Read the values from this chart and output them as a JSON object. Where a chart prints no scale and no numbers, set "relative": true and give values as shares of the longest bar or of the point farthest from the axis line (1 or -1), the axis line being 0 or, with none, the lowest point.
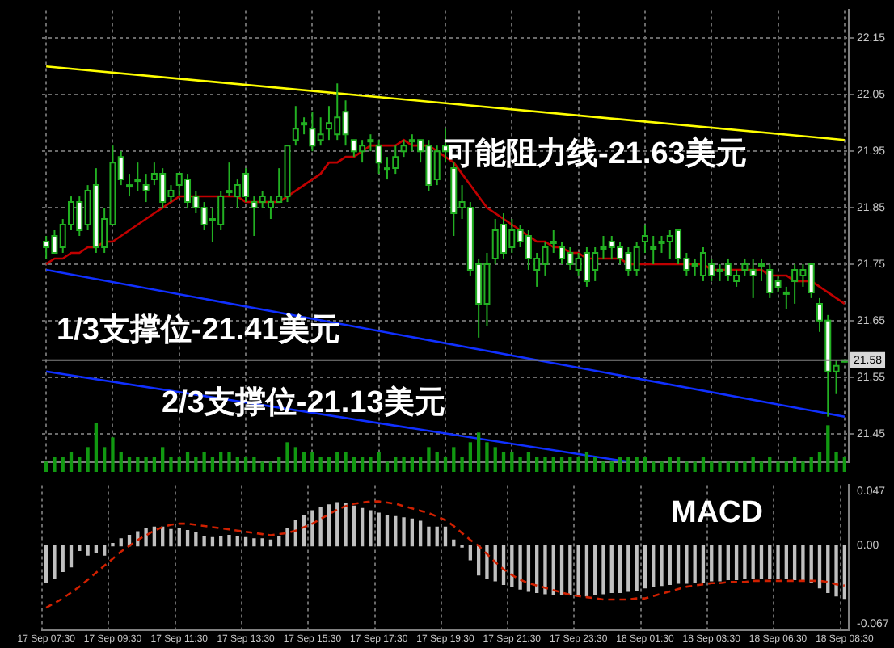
{
  "chart_data": [
    {
      "type": "candlestick",
      "color": "#22b022",
      "colors": [
        "#ffffff",
        "#ffffff",
        "#000000",
        "#000000",
        "#ffffff",
        "#000000",
        "#ffffff",
        "#000000",
        "#000000",
        "#ffffff",
        "#000000",
        "#000000",
        "#ffffff",
        "#000000",
        "#ffffff",
        "#000000",
        "#000000",
        "#ffffff",
        "#ffffff",
        "#ffffff",
        "#000000",
        "#000000",
        "#000000",
        "#000000",
        "#ffffff",
        "#ffffff",
        "#000000",
        "#000000",
        "#000000",
        "#000000",
        "#000000",
        "#000000",
        "#ffffff",
        "#000000",
        "#000000",
        "#000000",
        "#ffffff",
        "#ffffff",
        "#000000",
        "#000000",
        "#ffffff",
        "#000000",
        "#000000",
        "#000000",
        "#000000",
        "#ffffff",
        "#ffffff",
        "#000000",
        "#ffffff",
        "#ffffff",
        "#000000",
        "#ffffff",
        "#ffffff",
        "#000000",
        "#000000",
        "#ffffff",
        "#000000",
        "#ffffff",
        "#ffffff",
        "#000000",
        "#000000",
        "#000000",
        "#ffffff",
        "#ffffff",
        "#000000",
        "#ffffff",
        "#000000",
        "#000000",
        "#ffffff",
        "#ffffff",
        "#ffffff",
        "#000000",
        "#000000",
        "#000000",
        "#000000",
        "#000000",
        "#ffffff",
        "#ffffff",
        "#000000",
        "#000000",
        "#ffffff",
        "#000000",
        "#ffffff",
        "#000000",
        "#000000",
        "#ffffff",
        "#000000",
        "#ffffff",
        "#ffffff",
        "#000000",
        "#000000",
        "#000000",
        "#ffffff",
        "#ffffff",
        "#ffffff",
        "#000000",
        "#000000"
      ],
      "categories": [
        null,
        null,
        null,
        null,
        null,
        null,
        null,
        null,
        null,
        null,
        null,
        null,
        null,
        null,
        null,
        null,
        null,
        null,
        null,
        null,
        null,
        null,
        null,
        null,
        null,
        null,
        null,
        null,
        null,
        null,
        null,
        null,
        null,
        null,
        null,
        null,
        null,
        null,
        null,
        null,
        null,
        null,
        null,
        null,
        null,
        null,
        null,
        null,
        null,
        null,
        null,
        null,
        null,
        null,
        null,
        null,
        null,
        null,
        null,
        null,
        null,
        null,
        null,
        null,
        null,
        null,
        null,
        null,
        null,
        null,
        null,
        null,
        null,
        null,
        null,
        null,
        null,
        null,
        null,
        null,
        null,
        null,
        null,
        null,
        null,
        null,
        null,
        null,
        null,
        null,
        null,
        null,
        null,
        null,
        null,
        null,
        null
      ],
      "ohlc": [
        [
          21.79,
          21.8,
          21.76,
          21.78
        ],
        [
          21.8,
          21.81,
          21.77,
          21.77
        ],
        [
          21.78,
          21.83,
          21.77,
          21.82
        ],
        [
          21.82,
          21.87,
          21.81,
          21.86
        ],
        [
          21.86,
          21.87,
          21.8,
          21.81
        ],
        [
          21.82,
          21.89,
          21.81,
          21.88
        ],
        [
          21.89,
          21.92,
          21.77,
          21.78
        ],
        [
          21.78,
          21.85,
          21.77,
          21.83
        ],
        [
          21.82,
          21.96,
          21.82,
          21.93
        ],
        [
          21.94,
          21.95,
          21.89,
          21.9
        ],
        [
          21.89,
          21.91,
          21.87,
          21.89
        ],
        [
          21.9,
          21.93,
          21.88,
          21.9
        ],
        [
          21.89,
          21.91,
          21.86,
          21.88
        ],
        [
          21.9,
          21.93,
          21.89,
          21.91
        ],
        [
          21.91,
          21.92,
          21.85,
          21.86
        ],
        [
          21.87,
          21.89,
          21.86,
          21.88
        ],
        [
          21.89,
          21.91,
          21.87,
          21.91
        ],
        [
          21.9,
          21.91,
          21.85,
          21.86
        ],
        [
          21.87,
          21.88,
          21.84,
          21.85
        ],
        [
          21.85,
          21.86,
          21.81,
          21.82
        ],
        [
          21.83,
          21.85,
          21.79,
          21.83
        ],
        [
          21.82,
          21.88,
          21.81,
          21.87
        ],
        [
          21.88,
          21.93,
          21.87,
          21.88
        ],
        [
          21.87,
          21.9,
          21.85,
          21.89
        ],
        [
          21.91,
          21.92,
          21.86,
          21.87
        ],
        [
          21.86,
          21.87,
          21.8,
          21.85
        ],
        [
          21.86,
          21.88,
          21.85,
          21.87
        ],
        [
          21.85,
          21.87,
          21.83,
          21.86
        ],
        [
          21.86,
          21.92,
          21.86,
          21.87
        ],
        [
          21.87,
          21.96,
          21.86,
          21.96
        ],
        [
          21.97,
          22.03,
          21.96,
          21.99
        ],
        [
          22.0,
          22.01,
          21.98,
          22.0
        ],
        [
          21.99,
          22.02,
          21.95,
          21.96
        ],
        [
          21.97,
          22.01,
          21.96,
          21.98
        ],
        [
          21.99,
          22.03,
          21.97,
          22.0
        ],
        [
          21.98,
          22.07,
          21.97,
          22.01
        ],
        [
          22.02,
          22.04,
          21.96,
          21.98
        ],
        [
          21.97,
          21.97,
          21.94,
          21.95
        ],
        [
          21.95,
          21.97,
          21.93,
          21.96
        ],
        [
          21.97,
          21.98,
          21.95,
          21.97
        ],
        [
          21.96,
          21.97,
          21.91,
          21.93
        ],
        [
          21.92,
          21.94,
          21.9,
          21.92
        ],
        [
          21.92,
          21.96,
          21.91,
          21.94
        ],
        [
          21.95,
          21.97,
          21.94,
          21.96
        ],
        [
          21.97,
          21.98,
          21.95,
          21.97
        ],
        [
          21.97,
          21.97,
          21.93,
          21.95
        ],
        [
          21.96,
          21.97,
          21.88,
          21.89
        ],
        [
          21.9,
          21.96,
          21.89,
          21.95
        ],
        [
          21.96,
          21.99,
          21.93,
          21.95
        ],
        [
          21.92,
          21.93,
          21.8,
          21.84
        ],
        [
          21.85,
          21.89,
          21.83,
          21.86
        ],
        [
          21.85,
          21.86,
          21.73,
          21.74
        ],
        [
          21.75,
          21.76,
          21.62,
          21.68
        ],
        [
          21.68,
          21.77,
          21.64,
          21.75
        ],
        [
          21.76,
          21.83,
          21.75,
          21.81
        ],
        [
          21.82,
          21.84,
          21.76,
          21.77
        ],
        [
          21.78,
          21.83,
          21.77,
          21.81
        ],
        [
          21.81,
          21.82,
          21.78,
          21.79
        ],
        [
          21.8,
          21.81,
          21.74,
          21.76
        ],
        [
          21.74,
          21.77,
          21.71,
          21.76
        ],
        [
          21.75,
          21.79,
          21.73,
          21.78
        ],
        [
          21.79,
          21.81,
          21.77,
          21.79
        ],
        [
          21.78,
          21.79,
          21.75,
          21.76
        ],
        [
          21.77,
          21.78,
          21.74,
          21.75
        ],
        [
          21.74,
          21.77,
          21.73,
          21.76
        ],
        [
          21.77,
          21.78,
          21.71,
          21.72
        ],
        [
          21.74,
          21.78,
          21.72,
          21.77
        ],
        [
          21.78,
          21.8,
          21.76,
          21.78
        ],
        [
          21.79,
          21.8,
          21.76,
          21.78
        ],
        [
          21.78,
          21.79,
          21.75,
          21.76
        ],
        [
          21.77,
          21.78,
          21.73,
          21.74
        ],
        [
          21.74,
          21.79,
          21.73,
          21.78
        ],
        [
          21.79,
          21.82,
          21.77,
          21.8
        ],
        [
          21.78,
          21.8,
          21.75,
          21.78
        ],
        [
          21.79,
          21.8,
          21.77,
          21.79
        ],
        [
          21.79,
          21.81,
          21.76,
          21.8
        ],
        [
          21.81,
          21.81,
          21.75,
          21.76
        ],
        [
          21.76,
          21.77,
          21.73,
          21.74
        ],
        [
          21.75,
          21.76,
          21.73,
          21.75
        ],
        [
          21.73,
          21.78,
          21.72,
          21.77
        ],
        [
          21.75,
          21.76,
          21.72,
          21.73
        ],
        [
          21.74,
          21.75,
          21.72,
          21.74
        ],
        [
          21.75,
          21.76,
          21.72,
          21.73
        ],
        [
          21.72,
          21.74,
          21.71,
          21.73
        ],
        [
          21.74,
          21.76,
          21.73,
          21.75
        ],
        [
          21.74,
          21.76,
          21.69,
          21.73
        ],
        [
          21.75,
          21.76,
          21.72,
          21.75
        ],
        [
          21.74,
          21.75,
          21.69,
          21.7
        ],
        [
          21.72,
          21.73,
          21.7,
          21.71
        ],
        [
          21.7,
          21.71,
          21.67,
          21.7
        ],
        [
          21.72,
          21.75,
          21.68,
          21.74
        ],
        [
          21.73,
          21.75,
          21.71,
          21.74
        ],
        [
          21.75,
          21.75,
          21.69,
          21.7
        ],
        [
          21.68,
          21.69,
          21.63,
          21.65
        ],
        [
          21.65,
          21.66,
          21.48,
          21.56
        ],
        [
          21.56,
          21.58,
          21.52,
          21.57
        ],
        [
          21.58,
          21.58,
          21.58,
          21.58
        ]
      ],
      "series": [
        {
          "type": "line",
          "color": "#c00000",
          "values": [
            21.75,
            21.76,
            21.76,
            21.77,
            21.77,
            21.78,
            21.78,
            21.79,
            21.79,
            21.8,
            21.81,
            21.82,
            21.83,
            21.84,
            21.85,
            21.86,
            21.87,
            21.87,
            21.87,
            21.87,
            21.87,
            21.87,
            21.87,
            21.87,
            21.86,
            21.86,
            21.86,
            21.86,
            21.86,
            21.87,
            21.88,
            21.89,
            21.9,
            21.91,
            21.93,
            21.93,
            21.94,
            21.94,
            21.95,
            21.96,
            21.96,
            21.96,
            21.96,
            21.97,
            21.96,
            21.96,
            21.96,
            21.95,
            21.94,
            21.93,
            21.91,
            21.89,
            21.87,
            21.85,
            21.84,
            21.83,
            21.82,
            21.81,
            21.8,
            21.79,
            21.79,
            21.78,
            21.78,
            21.77,
            21.77,
            21.76,
            21.76,
            21.76,
            21.76,
            21.76,
            21.75,
            21.75,
            21.75,
            21.75,
            21.75,
            21.75,
            21.75,
            21.75,
            21.75,
            21.75,
            21.74,
            21.74,
            21.74,
            21.74,
            21.74,
            21.74,
            21.74,
            21.73,
            21.73,
            21.73,
            21.72,
            21.72,
            21.72,
            21.71,
            21.7,
            21.69,
            21.68
          ]
        },
        {
          "type": "line",
          "color": "#ffff00",
          "values": [
            22.1,
            null,
            null,
            null,
            null,
            null,
            null,
            null,
            null,
            null,
            null,
            null,
            null,
            null,
            null,
            null,
            null,
            null,
            null,
            null,
            null,
            null,
            null,
            null,
            null,
            null,
            null,
            null,
            null,
            null,
            null,
            null,
            null,
            null,
            null,
            null,
            null,
            null,
            null,
            null,
            null,
            null,
            null,
            null,
            null,
            null,
            null,
            null,
            null,
            null,
            null,
            null,
            null,
            null,
            null,
            null,
            null,
            null,
            null,
            null,
            null,
            null,
            null,
            null,
            null,
            null,
            null,
            null,
            null,
            null,
            null,
            null,
            null,
            null,
            null,
            null,
            null,
            null,
            null,
            null,
            null,
            null,
            null,
            null,
            null,
            null,
            null,
            null,
            null,
            null,
            null,
            null,
            null,
            null,
            null,
            null,
            21.97
          ]
        },
        {
          "type": "line",
          "color": "#1030ff",
          "values": [
            21.74,
            null,
            null,
            null,
            null,
            null,
            null,
            null,
            null,
            null,
            null,
            null,
            null,
            null,
            null,
            null,
            null,
            null,
            null,
            null,
            null,
            null,
            null,
            null,
            null,
            null,
            null,
            null,
            null,
            null,
            null,
            null,
            null,
            null,
            null,
            null,
            null,
            null,
            null,
            null,
            null,
            null,
            null,
            null,
            null,
            null,
            null,
            null,
            null,
            null,
            null,
            null,
            null,
            null,
            null,
            null,
            null,
            null,
            null,
            null,
            null,
            null,
            null,
            null,
            null,
            null,
            null,
            null,
            null,
            null,
            null,
            null,
            null,
            null,
            null,
            null,
            null,
            null,
            null,
            null,
            null,
            null,
            null,
            null,
            null,
            null,
            null,
            null,
            null,
            null,
            null,
            null,
            null,
            null,
            null,
            null,
            21.48
          ]
        },
        {
          "type": "line",
          "color": "#1030ff",
          "values": [
            21.56,
            null,
            null,
            null,
            null,
            null,
            null,
            null,
            null,
            null,
            null,
            null,
            null,
            null,
            null,
            null,
            null,
            null,
            null,
            null,
            null,
            null,
            null,
            null,
            null,
            null,
            null,
            null,
            null,
            null,
            null,
            null,
            null,
            null,
            null,
            null,
            null,
            null,
            null,
            null,
            null,
            null,
            null,
            null,
            null,
            null,
            null,
            null,
            null,
            null,
            null,
            null,
            null,
            null,
            null,
            null,
            null,
            null,
            null,
            null,
            null,
            null,
            null,
            null,
            null,
            null,
            null,
            null,
            null,
            null,
            21.4,
            null,
            null,
            null,
            null,
            null,
            null,
            null,
            null,
            null,
            null,
            null,
            null,
            null,
            null,
            null,
            null,
            null,
            null,
            null,
            null,
            null,
            null,
            null,
            null,
            null,
            null
          ]
        }
      ],
      "ylim": [
        21.4,
        22.2
      ],
      "yticks": [
        21.45,
        21.55,
        21.65,
        21.75,
        21.85,
        21.95,
        22.05,
        22.15
      ],
      "ref_lines": [
        {
          "axis": "y",
          "value": 21.58,
          "label": "21.58",
          "color": "#808080"
        }
      ],
      "annotations": [
        "可能阻力线-21.63美元",
        "1/3支撑位-21.41美元",
        "2/3支撑位-21.13美元"
      ],
      "grid": true,
      "tick_labels": "y"
    },
    {
      "type": "bar",
      "relative": true,
      "color": "#119911",
      "categories": [
        null,
        null,
        null,
        null,
        null,
        null,
        null,
        null,
        null,
        null,
        null,
        null,
        null,
        null,
        null,
        null,
        null,
        null,
        null,
        null,
        null,
        null,
        null,
        null,
        null,
        null,
        null,
        null,
        null,
        null,
        null,
        null,
        null,
        null,
        null,
        null,
        null,
        null,
        null,
        null,
        null,
        null,
        null,
        null,
        null,
        null,
        null,
        null,
        null,
        null,
        null,
        null,
        null,
        null,
        null,
        null,
        null,
        null,
        null,
        null,
        null,
        null,
        null,
        null,
        null,
        null,
        null,
        null,
        null,
        null,
        null,
        null,
        null,
        null,
        null,
        null,
        null,
        null,
        null,
        null,
        null,
        null,
        null,
        null,
        null,
        null,
        null,
        null,
        null,
        null,
        null,
        null,
        null,
        null,
        null,
        null,
        null
      ],
      "values": [
        0.2,
        0.3,
        0.3,
        0.4,
        0.3,
        0.5,
        1,
        0.5,
        0.7,
        0.4,
        0.3,
        0.3,
        0.3,
        0.3,
        0.5,
        0.3,
        0.3,
        0.4,
        0.3,
        0.4,
        0.3,
        0.4,
        0.4,
        0.3,
        0.3,
        0.3,
        0.2,
        0.2,
        0.3,
        0.6,
        0.5,
        0.4,
        0.4,
        0.3,
        0.3,
        0.4,
        0.4,
        0.3,
        0.3,
        0.3,
        0.4,
        0.2,
        0.3,
        0.3,
        0.3,
        0.3,
        0.5,
        0.4,
        0.3,
        0.5,
        0.3,
        0.6,
        0.8,
        0.6,
        0.5,
        0.4,
        0.4,
        0.3,
        0.4,
        0.3,
        0.3,
        0.3,
        0.3,
        0.3,
        0.3,
        0.4,
        0.3,
        0.2,
        0.2,
        0.3,
        0.3,
        0.3,
        0.3,
        0.2,
        0.2,
        0.3,
        0.3,
        0.2,
        0.2,
        0.3,
        0.2,
        0.2,
        0.2,
        0.2,
        0.2,
        0.3,
        0.2,
        0.3,
        0.2,
        0.2,
        0.3,
        0.2,
        0.3,
        0.4,
        0.95,
        0.4,
        0.3
      ],
      "tick_labels": false
    },
    {
      "type": "bar",
      "categories": [
        "17 Sep 07:30",
        null,
        null,
        null,
        null,
        null,
        null,
        null,
        "17 Sep 09:30",
        null,
        null,
        null,
        null,
        null,
        null,
        null,
        "17 Sep 11:30",
        null,
        null,
        null,
        null,
        null,
        null,
        null,
        "17 Sep 13:30",
        null,
        null,
        null,
        null,
        null,
        null,
        null,
        "17 Sep 15:30",
        null,
        null,
        null,
        null,
        null,
        null,
        null,
        "17 Sep 17:30",
        null,
        null,
        null,
        null,
        null,
        null,
        null,
        "17 Sep 19:30",
        null,
        null,
        null,
        null,
        null,
        null,
        null,
        "17 Sep 21:30",
        null,
        null,
        null,
        null,
        null,
        null,
        null,
        "17 Sep 23:30",
        null,
        null,
        null,
        null,
        null,
        null,
        null,
        "18 Sep 01:30",
        null,
        null,
        null,
        null,
        null,
        null,
        null,
        "18 Sep 03:30",
        null,
        null,
        null,
        null,
        null,
        null,
        null,
        "18 Sep 06:30",
        null,
        null,
        null,
        null,
        null,
        null,
        null,
        "18 Sep 08:30"
      ],
      "series": [
        {
          "type": "bar",
          "color": "#c0c0c0",
          "values": [
            -0.031,
            -0.028,
            -0.022,
            -0.018,
            -0.004,
            -0.008,
            -0.006,
            -0.008,
            0.002,
            0.006,
            0.009,
            0.012,
            0.015,
            0.016,
            0.016,
            0.014,
            0.015,
            0.013,
            0.011,
            0.008,
            0.007,
            0.008,
            0.009,
            0.008,
            0.007,
            0.006,
            0.006,
            0.005,
            0.008,
            0.015,
            0.022,
            0.026,
            0.03,
            0.033,
            0.035,
            0.037,
            0.036,
            0.034,
            0.032,
            0.03,
            0.028,
            0.026,
            0.025,
            0.024,
            0.023,
            0.021,
            0.016,
            0.016,
            0.016,
            0.005,
            -0.001,
            -0.012,
            -0.025,
            -0.028,
            -0.03,
            -0.033,
            -0.035,
            -0.037,
            -0.039,
            -0.04,
            -0.041,
            -0.042,
            -0.042,
            -0.042,
            -0.043,
            -0.043,
            -0.042,
            -0.041,
            -0.04,
            -0.04,
            -0.039,
            -0.038,
            -0.036,
            -0.035,
            -0.034,
            -0.033,
            -0.032,
            -0.032,
            -0.031,
            -0.031,
            -0.03,
            -0.03,
            -0.029,
            -0.029,
            -0.028,
            -0.028,
            -0.028,
            -0.028,
            -0.028,
            -0.028,
            -0.029,
            -0.029,
            -0.031,
            -0.036,
            -0.04,
            -0.043,
            -0.045
          ]
        },
        {
          "type": "line",
          "color": "#d02000",
          "line_style": "dashed",
          "values": [
            -0.053,
            -0.049,
            -0.045,
            -0.04,
            -0.035,
            -0.029,
            -0.023,
            -0.017,
            -0.011,
            -0.005,
            0.0,
            0.005,
            0.009,
            0.013,
            0.016,
            0.018,
            0.019,
            0.019,
            0.018,
            0.017,
            0.016,
            0.015,
            0.014,
            0.013,
            0.012,
            0.011,
            0.01,
            0.009,
            0.01,
            0.011,
            0.013,
            0.016,
            0.019,
            0.023,
            0.027,
            0.031,
            0.034,
            0.036,
            0.037,
            0.038,
            0.038,
            0.037,
            0.036,
            0.034,
            0.032,
            0.03,
            0.028,
            0.025,
            0.022,
            0.017,
            0.011,
            0.005,
            0.0,
            -0.007,
            -0.014,
            -0.02,
            -0.025,
            -0.029,
            -0.032,
            -0.034,
            -0.036,
            -0.038,
            -0.04,
            -0.042,
            -0.043,
            -0.044,
            -0.045,
            -0.046,
            -0.046,
            -0.046,
            -0.046,
            -0.045,
            -0.045,
            -0.043,
            -0.041,
            -0.039,
            -0.037,
            -0.035,
            -0.034,
            -0.033,
            -0.032,
            -0.032,
            -0.031,
            -0.031,
            -0.031,
            -0.03,
            -0.03,
            -0.03,
            -0.03,
            -0.03,
            -0.03,
            -0.03,
            -0.03,
            -0.03,
            -0.031,
            -0.033,
            -0.034
          ]
        }
      ],
      "ylim": [
        -0.072,
        0.052
      ],
      "yticks": [
        {
          "value": 0.047,
          "label": "0.047"
        },
        {
          "value": 0,
          "label": "0.00"
        },
        {
          "value": -0.067,
          "label": "-0.067"
        }
      ],
      "annotations": [
        "MACD"
      ],
      "grid": "x"
    }
  ]
}
